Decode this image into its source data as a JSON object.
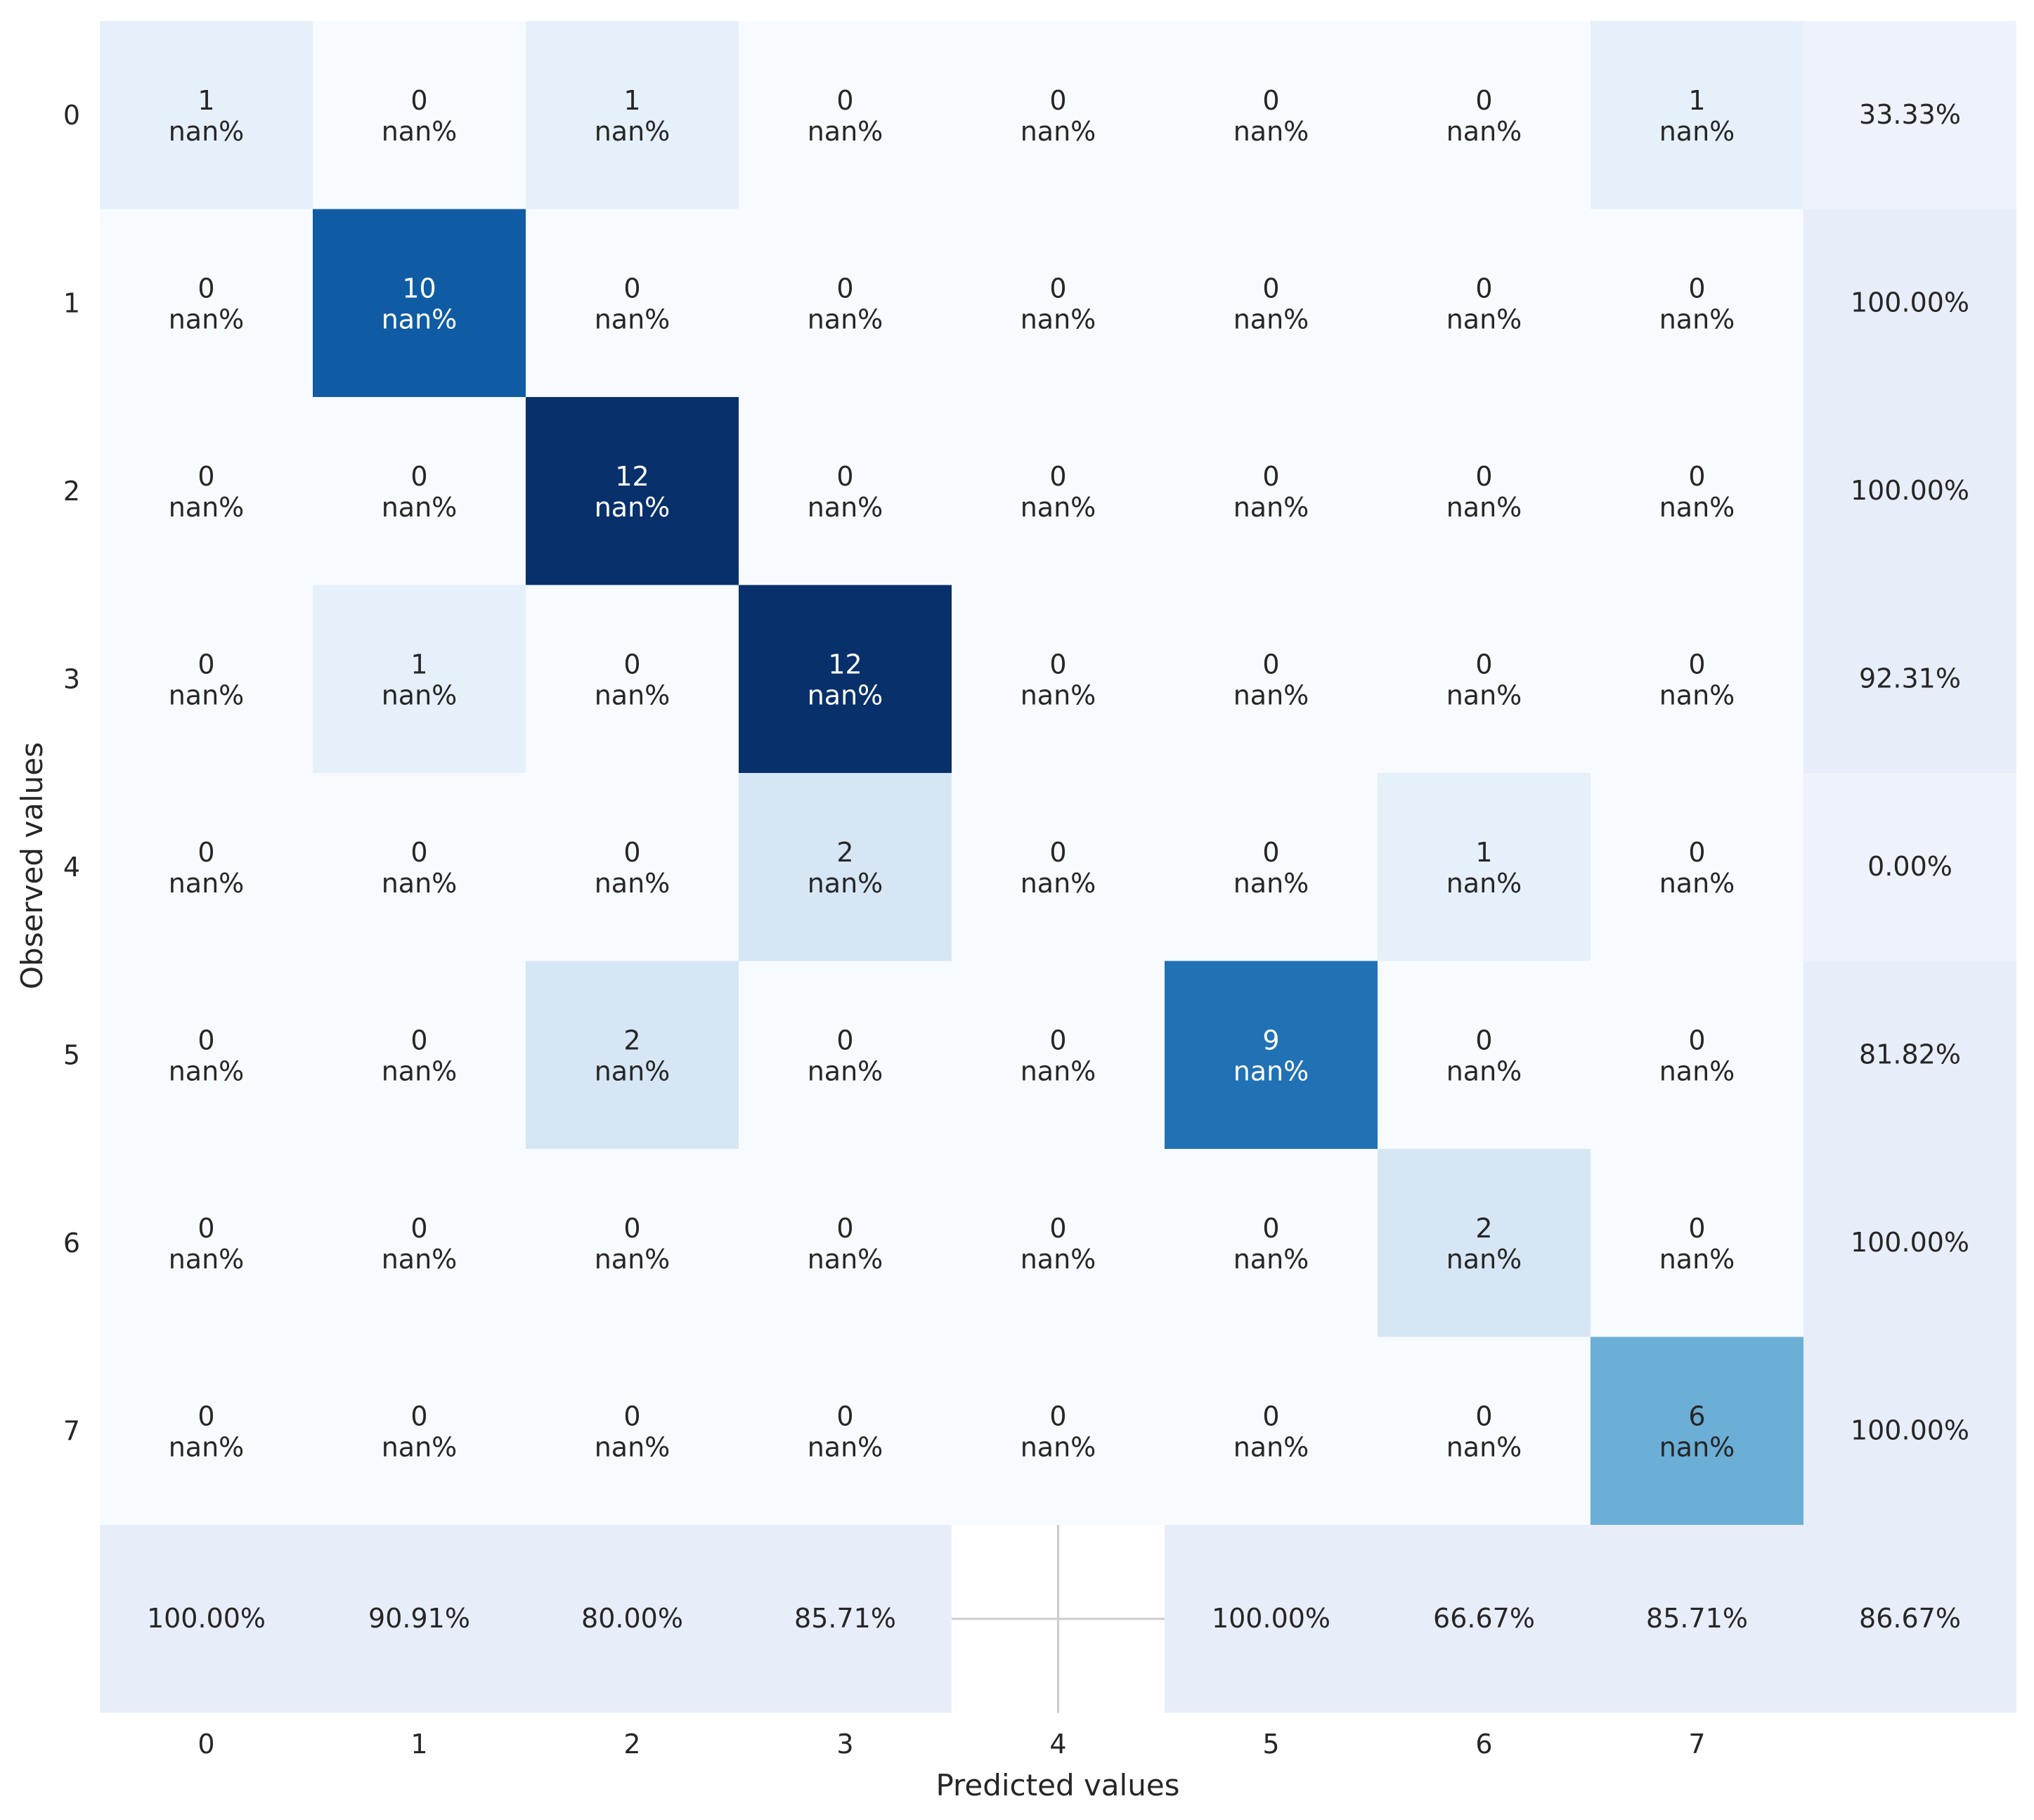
{
  "chart_data": {
    "type": "heatmap",
    "title": "",
    "xlabel": "Predicted values",
    "ylabel": "Observed values",
    "x_tick_labels": [
      "0",
      "1",
      "2",
      "3",
      "4",
      "5",
      "6",
      "7",
      ""
    ],
    "y_tick_labels": [
      "0",
      "1",
      "2",
      "3",
      "4",
      "5",
      "6",
      "7",
      ""
    ],
    "matrix": [
      [
        1,
        0,
        1,
        0,
        0,
        0,
        0,
        1
      ],
      [
        0,
        10,
        0,
        0,
        0,
        0,
        0,
        0
      ],
      [
        0,
        0,
        12,
        0,
        0,
        0,
        0,
        0
      ],
      [
        0,
        1,
        0,
        12,
        0,
        0,
        0,
        0
      ],
      [
        0,
        0,
        0,
        2,
        0,
        0,
        1,
        0
      ],
      [
        0,
        0,
        2,
        0,
        0,
        9,
        0,
        0
      ],
      [
        0,
        0,
        0,
        0,
        0,
        0,
        2,
        0
      ],
      [
        0,
        0,
        0,
        0,
        0,
        0,
        0,
        6
      ]
    ],
    "cell_percent_label": "nan%",
    "row_summary": [
      "33.33%",
      "100.00%",
      "100.00%",
      "92.31%",
      "0.00%",
      "81.82%",
      "100.00%",
      "100.00%"
    ],
    "col_summary": [
      "100.00%",
      "90.91%",
      "80.00%",
      "85.71%",
      "",
      "100.00%",
      "66.67%",
      "85.71%"
    ],
    "overall": "86.67%",
    "colormap": "Blues",
    "vmin": 0,
    "vmax": 12,
    "summary_cell_color": "#e8eef9",
    "summary_row_color_light": "#eef3fb",
    "grid": false,
    "legend": "none"
  }
}
